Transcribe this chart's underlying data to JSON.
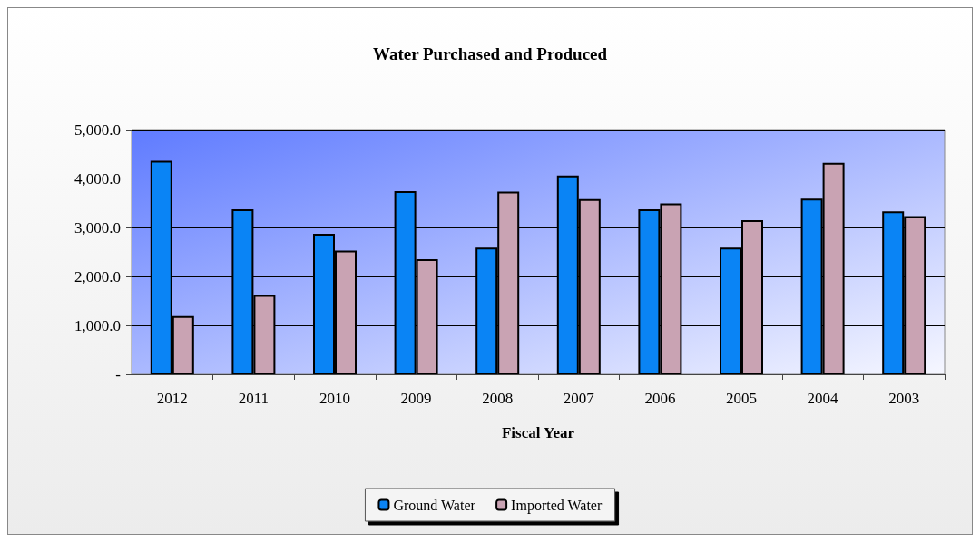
{
  "chart_data": {
    "type": "bar",
    "title": "Water Purchased and Produced",
    "xlabel": "Fiscal Year",
    "categories": [
      "2012",
      "2011",
      "2010",
      "2009",
      "2008",
      "2007",
      "2006",
      "2005",
      "2004",
      "2003"
    ],
    "series": [
      {
        "name": "Ground Water",
        "color": "#0a84f5",
        "values": [
          4360,
          3370,
          2870,
          3740,
          2590,
          4060,
          3370,
          2590,
          3590,
          3330
        ]
      },
      {
        "name": "Imported Water",
        "color": "#c9a3b3",
        "values": [
          1190,
          1620,
          2530,
          2350,
          3730,
          3580,
          3490,
          3150,
          4320,
          3230
        ]
      }
    ],
    "ylim": [
      0,
      5000
    ],
    "yticks": [
      {
        "value": 0,
        "label": "-"
      },
      {
        "value": 1000,
        "label": "1,000.0"
      },
      {
        "value": 2000,
        "label": "2,000.0"
      },
      {
        "value": 3000,
        "label": "3,000.0"
      },
      {
        "value": 4000,
        "label": "4,000.0"
      },
      {
        "value": 5000,
        "label": "5,000.0"
      }
    ],
    "grid": "y",
    "legend": "bottom"
  }
}
